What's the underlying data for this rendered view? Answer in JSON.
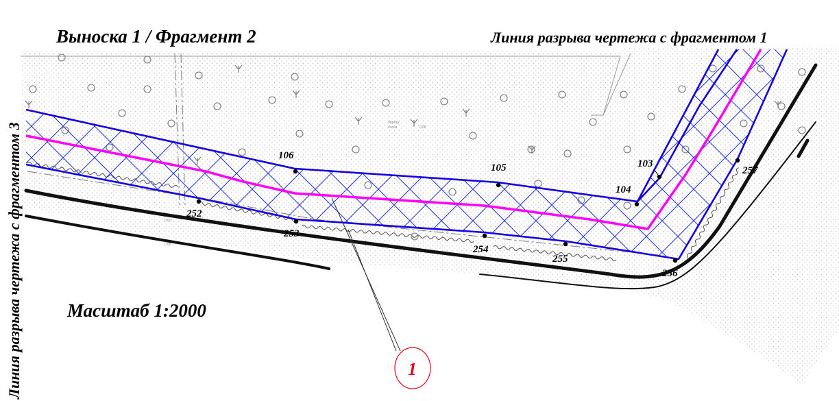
{
  "labels": {
    "top_left": "Выноска 1 / Фрагмент 2",
    "top_right": "Линия разрыва чертежа с фрагментом 1",
    "side": "Линия разрыва чертежа с фрагментом 3",
    "scale": "Масштаб 1:2000"
  },
  "callout": {
    "number": "1"
  },
  "points_upper": [
    "106",
    "105",
    "104",
    "103"
  ],
  "points_lower": [
    "252",
    "253",
    "254",
    "255",
    "256",
    "257"
  ],
  "colors": {
    "boundary": "#1400e0",
    "hatch": "#1e2ee6",
    "centerline": "#ff00ff",
    "callout": "#e8001a",
    "road": "#111111",
    "stipple": "#bdbdbd"
  },
  "map_icons": [
    "tree-circle-icon",
    "shrub-icon"
  ]
}
